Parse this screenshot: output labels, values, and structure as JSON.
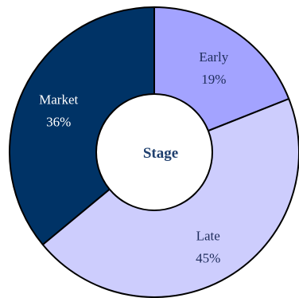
{
  "chart_data": {
    "type": "pie",
    "style": "donut",
    "center_label": "Stage",
    "slices": [
      {
        "label": "Early",
        "value": 19,
        "value_label": "19%",
        "color": "#a3a3ff",
        "label_color": "#1f2d5c"
      },
      {
        "label": "Late",
        "value": 45,
        "value_label": "45%",
        "color": "#cdcdfd",
        "label_color": "#1f2d5c"
      },
      {
        "label": "Market",
        "value": 36,
        "value_label": "36%",
        "color": "#003366",
        "label_color": "#ffffff"
      }
    ],
    "start_angle_deg": 0,
    "direction": "clockwise",
    "legend": "none"
  },
  "colors": {
    "center_fill": "#ffffff",
    "center_text": "#1f3f6e",
    "edge": "#000000"
  }
}
